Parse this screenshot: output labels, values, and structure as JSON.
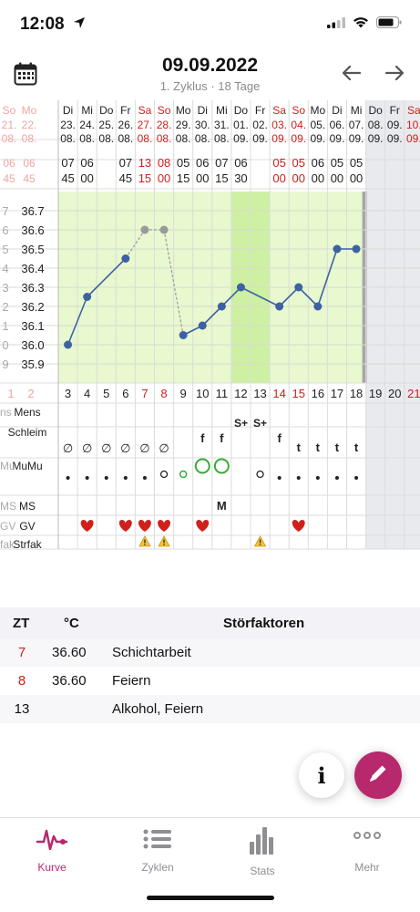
{
  "status_bar": {
    "time": "12:08"
  },
  "header": {
    "title": "09.09.2022",
    "subtitle": "1. Zyklus · 18 Tage"
  },
  "chart_data": {
    "type": "line",
    "ylabel": "°C",
    "ylim": [
      35.8,
      36.8
    ],
    "y_ticks": [
      "36.7",
      "36.6",
      "36.5",
      "36.4",
      "36.3",
      "36.2",
      "36.1",
      "36.0",
      "35.9"
    ],
    "y_ticks_partial": [
      "7",
      "6",
      "5",
      "4",
      "3",
      "2",
      "1",
      "0",
      "9"
    ],
    "prev_days": {
      "weekdays": [
        "So",
        "Mo"
      ],
      "dates": [
        "21.",
        "22."
      ],
      "months": [
        "08.",
        "08."
      ],
      "times_h": [
        "06",
        "06"
      ],
      "times_m": [
        "45",
        "45"
      ]
    },
    "days": [
      {
        "zt": "3",
        "wd": "Di",
        "date": "23.",
        "mon": "08.",
        "th": "07",
        "tm": "45",
        "temp": 36.0,
        "excluded": false,
        "weekend": false,
        "schleim": "∅",
        "mumu": "•",
        "ms": "",
        "gv": false,
        "strfak": false
      },
      {
        "zt": "4",
        "wd": "Mi",
        "date": "24.",
        "mon": "08.",
        "th": "06",
        "tm": "00",
        "temp": 36.25,
        "excluded": false,
        "weekend": false,
        "schleim": "∅",
        "mumu": "•",
        "ms": "",
        "gv": true,
        "strfak": false
      },
      {
        "zt": "5",
        "wd": "Do",
        "date": "25.",
        "mon": "08.",
        "th": "",
        "tm": "",
        "temp": null,
        "excluded": false,
        "weekend": false,
        "schleim": "∅",
        "mumu": "•",
        "ms": "",
        "gv": false,
        "strfak": false
      },
      {
        "zt": "6",
        "wd": "Fr",
        "date": "26.",
        "mon": "08.",
        "th": "07",
        "tm": "45",
        "temp": 36.45,
        "excluded": false,
        "weekend": false,
        "schleim": "∅",
        "mumu": "•",
        "ms": "",
        "gv": true,
        "strfak": false
      },
      {
        "zt": "7",
        "wd": "Sa",
        "date": "27.",
        "mon": "08.",
        "th": "13",
        "tm": "15",
        "temp": 36.6,
        "excluded": true,
        "weekend": true,
        "schleim": "∅",
        "mumu": "•",
        "ms": "",
        "gv": true,
        "strfak": true
      },
      {
        "zt": "8",
        "wd": "So",
        "date": "28.",
        "mon": "08.",
        "th": "08",
        "tm": "00",
        "temp": 36.6,
        "excluded": true,
        "weekend": true,
        "schleim": "∅",
        "mumu": "o",
        "ms": "",
        "gv": true,
        "strfak": true
      },
      {
        "zt": "9",
        "wd": "Mo",
        "date": "29.",
        "mon": "08.",
        "th": "05",
        "tm": "15",
        "temp": 36.05,
        "excluded": false,
        "weekend": false,
        "schleim": "",
        "mumu": "o-green",
        "ms": "",
        "gv": false,
        "strfak": false
      },
      {
        "zt": "10",
        "wd": "Di",
        "date": "30.",
        "mon": "08.",
        "th": "06",
        "tm": "00",
        "temp": 36.1,
        "excluded": false,
        "weekend": false,
        "schleim": "f",
        "mumu": "O-green",
        "ms": "",
        "gv": true,
        "strfak": false
      },
      {
        "zt": "11",
        "wd": "Mi",
        "date": "31.",
        "mon": "08.",
        "th": "07",
        "tm": "15",
        "temp": 36.2,
        "excluded": false,
        "weekend": false,
        "schleim": "f",
        "mumu": "O-green",
        "ms": "M",
        "gv": false,
        "strfak": false
      },
      {
        "zt": "12",
        "wd": "Do",
        "date": "01.",
        "mon": "09.",
        "th": "06",
        "tm": "30",
        "temp": 36.3,
        "excluded": false,
        "weekend": false,
        "schleim": "S+",
        "mumu": "",
        "ms": "",
        "gv": false,
        "strfak": false
      },
      {
        "zt": "13",
        "wd": "Fr",
        "date": "02.",
        "mon": "09.",
        "th": "",
        "tm": "",
        "temp": null,
        "excluded": false,
        "weekend": false,
        "schleim": "S+",
        "mumu": "o",
        "ms": "",
        "gv": false,
        "strfak": true
      },
      {
        "zt": "14",
        "wd": "Sa",
        "date": "03.",
        "mon": "09.",
        "th": "05",
        "tm": "00",
        "temp": 36.2,
        "excluded": false,
        "weekend": true,
        "schleim": "f",
        "mumu": "•",
        "ms": "",
        "gv": false,
        "strfak": false
      },
      {
        "zt": "15",
        "wd": "So",
        "date": "04.",
        "mon": "09.",
        "th": "05",
        "tm": "00",
        "temp": 36.3,
        "excluded": false,
        "weekend": true,
        "schleim": "t",
        "mumu": "•",
        "ms": "",
        "gv": true,
        "strfak": false
      },
      {
        "zt": "16",
        "wd": "Mo",
        "date": "05.",
        "mon": "09.",
        "th": "06",
        "tm": "00",
        "temp": 36.2,
        "excluded": false,
        "weekend": false,
        "schleim": "t",
        "mumu": "•",
        "ms": "",
        "gv": false,
        "strfak": false
      },
      {
        "zt": "17",
        "wd": "Di",
        "date": "06.",
        "mon": "09.",
        "th": "05",
        "tm": "00",
        "temp": 36.5,
        "excluded": false,
        "weekend": false,
        "schleim": "t",
        "mumu": "•",
        "ms": "",
        "gv": false,
        "strfak": false
      },
      {
        "zt": "18",
        "wd": "Mi",
        "date": "07.",
        "mon": "09.",
        "th": "05",
        "tm": "00",
        "temp": 36.5,
        "excluded": false,
        "weekend": false,
        "schleim": "t",
        "mumu": "•",
        "ms": "",
        "gv": false,
        "strfak": false
      },
      {
        "zt": "19",
        "wd": "Do",
        "date": "08.",
        "mon": "09.",
        "th": "",
        "tm": "",
        "temp": null,
        "excluded": false,
        "weekend": false,
        "schleim": "",
        "mumu": "",
        "ms": "",
        "gv": false,
        "strfak": false
      },
      {
        "zt": "20",
        "wd": "Fr",
        "date": "09.",
        "mon": "09.",
        "th": "",
        "tm": "",
        "temp": null,
        "excluded": false,
        "weekend": false,
        "schleim": "",
        "mumu": "",
        "ms": "",
        "gv": false,
        "strfak": false
      },
      {
        "zt": "21",
        "wd": "Sa",
        "date": "10.",
        "mon": "09.",
        "th": "",
        "tm": "",
        "temp": null,
        "excluded": false,
        "weekend": true,
        "schleim": "",
        "mumu": "",
        "ms": "",
        "gv": false,
        "strfak": false
      }
    ],
    "today_index": 17,
    "fertile_window_days": [
      "12",
      "13"
    ],
    "row_labels": [
      "Mens",
      "Schleim",
      "MuMu",
      "MS",
      "GV",
      "Strfak"
    ],
    "row_labels_partial": [
      "ns",
      "Mu",
      "MS",
      "GV",
      "fak"
    ],
    "prev_zt": [
      "1",
      "2"
    ],
    "colors": {
      "green": "#e8f8cf",
      "green_dark": "#cdf0a2",
      "line": "#3e61a4",
      "excluded": "#9a9a9a",
      "red": "#d0201c",
      "future": "#e8eaee",
      "today": "#d9e4ee"
    }
  },
  "table": {
    "headers": {
      "zt": "ZT",
      "temp": "°C",
      "factors": "Störfaktoren"
    },
    "rows": [
      {
        "zt": "7",
        "temp": "36.60",
        "factors": "Schichtarbeit",
        "red": true
      },
      {
        "zt": "8",
        "temp": "36.60",
        "factors": "Feiern",
        "red": true
      },
      {
        "zt": "13",
        "temp": "",
        "factors": "Alkohol, Feiern",
        "red": false
      }
    ]
  },
  "fab": {
    "info_label": "i"
  },
  "tabbar": {
    "tabs": [
      {
        "label": "Kurve",
        "icon": "heartbeat-icon",
        "active": true
      },
      {
        "label": "Zyklen",
        "icon": "list-icon",
        "active": false
      },
      {
        "label": "Stats",
        "icon": "bar-chart-icon",
        "active": false
      },
      {
        "label": "Mehr",
        "icon": "more-dots-icon",
        "active": false
      }
    ]
  }
}
